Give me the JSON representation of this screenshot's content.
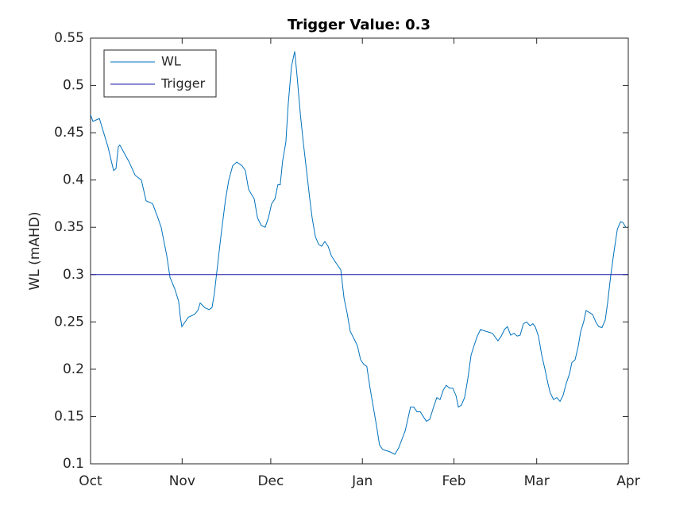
{
  "chart_data": {
    "type": "line",
    "title": "Trigger Value: 0.3",
    "ylabel": "WL (mAHD)",
    "x": [
      0,
      0.8,
      3,
      5.9,
      7.8,
      8.6,
      9.4,
      9.9,
      12.9,
      15.1,
      17.2,
      18.8,
      21,
      22.8,
      23.9,
      25.8,
      26.9,
      28.5,
      29.8,
      30.4,
      30.9,
      33.1,
      35.2,
      36.3,
      37.1,
      38.7,
      40.1,
      41.1,
      41.9,
      43,
      44.1,
      45.7,
      46.8,
      48.1,
      49.5,
      51.3,
      52.4,
      53.5,
      55.4,
      56.5,
      57.8,
      59.1,
      60.2,
      61.3,
      62.4,
      63.4,
      64.2,
      65,
      66.1,
      66.9,
      68,
      69.1,
      69.9,
      71,
      72,
      73.1,
      74.2,
      75,
      76.1,
      77.2,
      78.2,
      79.3,
      80.4,
      81.5,
      82.5,
      83.6,
      84.7,
      85.8,
      86.8,
      87.9,
      89.2,
      90.3,
      91.4,
      92.5,
      93.5,
      94.6,
      95.7,
      96.8,
      97.8,
      98.9,
      101.1,
      103,
      104.3,
      106.5,
      108.3,
      109.4,
      110.5,
      111.6,
      112.6,
      113.7,
      114.8,
      116.1,
      117.2,
      118.3,
      119.4,
      120.4,
      121.5,
      122.6,
      123.7,
      124.5,
      125.5,
      126.6,
      127.7,
      128.8,
      129.8,
      130.9,
      132,
      133.9,
      136,
      137.9,
      139,
      140.1,
      141.1,
      142.2,
      143.3,
      144.4,
      145.4,
      146.5,
      147.6,
      148.7,
      149.7,
      150.5,
      151.6,
      152.7,
      153.8,
      154.8,
      155.6,
      156.7,
      157.8,
      158.9,
      159.9,
      161,
      162.1,
      162.9,
      164,
      165.1,
      165.9,
      166.9,
      167.7,
      168.8,
      169.9,
      171,
      172,
      173.1,
      174.2,
      175,
      176.1,
      177.2,
      178.3,
      179.4,
      180.2,
      181.2
    ],
    "series": [
      {
        "name": "WL",
        "color": "#0072bd",
        "values": [
          0.469,
          0.462,
          0.465,
          0.435,
          0.41,
          0.412,
          0.435,
          0.437,
          0.42,
          0.405,
          0.4,
          0.378,
          0.375,
          0.36,
          0.35,
          0.32,
          0.297,
          0.285,
          0.272,
          0.255,
          0.245,
          0.255,
          0.258,
          0.262,
          0.27,
          0.265,
          0.263,
          0.265,
          0.28,
          0.31,
          0.34,
          0.38,
          0.4,
          0.415,
          0.419,
          0.415,
          0.41,
          0.39,
          0.38,
          0.36,
          0.352,
          0.35,
          0.36,
          0.375,
          0.38,
          0.395,
          0.395,
          0.42,
          0.44,
          0.48,
          0.52,
          0.536,
          0.51,
          0.47,
          0.44,
          0.41,
          0.38,
          0.36,
          0.34,
          0.332,
          0.33,
          0.335,
          0.33,
          0.32,
          0.315,
          0.31,
          0.305,
          0.275,
          0.26,
          0.24,
          0.232,
          0.225,
          0.21,
          0.205,
          0.203,
          0.18,
          0.16,
          0.14,
          0.12,
          0.115,
          0.113,
          0.11,
          0.117,
          0.135,
          0.16,
          0.16,
          0.155,
          0.155,
          0.15,
          0.145,
          0.147,
          0.16,
          0.17,
          0.168,
          0.178,
          0.183,
          0.18,
          0.18,
          0.172,
          0.16,
          0.162,
          0.17,
          0.19,
          0.215,
          0.225,
          0.235,
          0.242,
          0.24,
          0.238,
          0.23,
          0.235,
          0.242,
          0.245,
          0.236,
          0.238,
          0.235,
          0.236,
          0.248,
          0.25,
          0.246,
          0.248,
          0.245,
          0.235,
          0.215,
          0.2,
          0.185,
          0.175,
          0.168,
          0.17,
          0.166,
          0.172,
          0.185,
          0.195,
          0.207,
          0.21,
          0.225,
          0.24,
          0.25,
          0.262,
          0.26,
          0.258,
          0.25,
          0.245,
          0.244,
          0.252,
          0.27,
          0.3,
          0.325,
          0.348,
          0.356,
          0.355,
          0.35
        ]
      },
      {
        "name": "Trigger",
        "color": "#1a1aa6",
        "x": [
          0,
          182
        ],
        "values": [
          0.3,
          0.3
        ]
      }
    ],
    "xlim": [
      0,
      182
    ],
    "xticks": [
      {
        "value": 0,
        "label": "Oct"
      },
      {
        "value": 31,
        "label": "Nov"
      },
      {
        "value": 61,
        "label": "Dec"
      },
      {
        "value": 92,
        "label": "Jan"
      },
      {
        "value": 123,
        "label": "Feb"
      },
      {
        "value": 151,
        "label": "Mar"
      },
      {
        "value": 182,
        "label": "Apr"
      }
    ],
    "ylim": [
      0.1,
      0.55
    ],
    "yticks": [
      0.1,
      0.15,
      0.2,
      0.25,
      0.3,
      0.35,
      0.4,
      0.45,
      0.5,
      0.55
    ],
    "grid": false,
    "legend": "top-left"
  }
}
